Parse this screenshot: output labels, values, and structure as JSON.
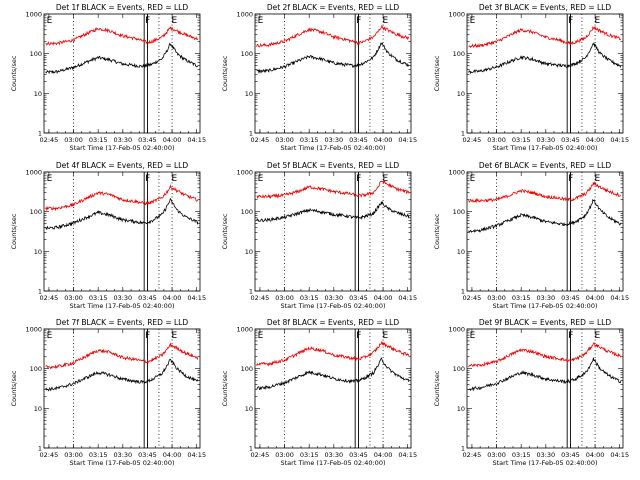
{
  "figure": {
    "x_ticks": [
      "02:45",
      "03:00",
      "03:15",
      "03:30",
      "03:45",
      "04:00",
      "04:15"
    ],
    "y_ticks": [
      "1000",
      "100",
      "10",
      "1"
    ],
    "xlabel": "Start Time (17-Feb-05 02:40:00)",
    "ylabel": "Counts/sec",
    "flags": [
      "E",
      "F",
      "E"
    ],
    "colors": {
      "events": "#000000",
      "lld": "#ee0000",
      "axes": "#000000",
      "background": "#ffffff"
    }
  },
  "chart_data": [
    {
      "type": "line",
      "title": "Det 1f BLACK = Events, RED = LLD",
      "xlabel": "Start Time (17-Feb-05 02:40:00)",
      "ylabel": "Counts/sec",
      "yscale": "log",
      "ylim": [
        1,
        1000
      ],
      "x_ticks": [
        "02:45",
        "03:00",
        "03:15",
        "03:30",
        "03:45",
        "04:00",
        "04:15"
      ],
      "markers": {
        "dotted": [
          "03:00",
          "03:52",
          "04:00"
        ],
        "solid": [
          "03:43",
          "03:45"
        ]
      },
      "series": [
        {
          "name": "Events",
          "color": "#000000",
          "x": [
            "02:43",
            "02:50",
            "03:00",
            "03:08",
            "03:15",
            "03:22",
            "03:30",
            "03:38",
            "03:42",
            "03:45",
            "03:48",
            "03:54",
            "03:57",
            "03:59",
            "04:03",
            "04:08",
            "04:15"
          ],
          "values": [
            34,
            35,
            45,
            62,
            80,
            70,
            55,
            50,
            48,
            50,
            55,
            75,
            120,
            180,
            100,
            70,
            50
          ]
        },
        {
          "name": "LLD",
          "color": "#ee0000",
          "x": [
            "02:43",
            "02:50",
            "03:00",
            "03:08",
            "03:15",
            "03:22",
            "03:30",
            "03:38",
            "03:42",
            "03:45",
            "03:48",
            "03:54",
            "03:57",
            "03:59",
            "04:03",
            "04:08",
            "04:15"
          ],
          "values": [
            180,
            182,
            220,
            320,
            430,
            380,
            280,
            240,
            210,
            190,
            205,
            260,
            360,
            450,
            380,
            300,
            240
          ]
        }
      ]
    },
    {
      "type": "line",
      "title": "Det 2f BLACK = Events, RED = LLD",
      "xlabel": "Start Time (17-Feb-05 02:40:00)",
      "ylabel": "Counts/sec",
      "yscale": "log",
      "ylim": [
        1,
        1000
      ],
      "x_ticks": [
        "02:45",
        "03:00",
        "03:15",
        "03:30",
        "03:45",
        "04:00",
        "04:15"
      ],
      "markers": {
        "dotted": [
          "03:00",
          "03:52",
          "04:00"
        ],
        "solid": [
          "03:43",
          "03:45"
        ]
      },
      "series": [
        {
          "name": "Events",
          "color": "#000000",
          "x": [
            "02:43",
            "02:50",
            "03:00",
            "03:08",
            "03:15",
            "03:22",
            "03:30",
            "03:38",
            "03:42",
            "03:45",
            "03:48",
            "03:54",
            "03:57",
            "03:59",
            "04:03",
            "04:08",
            "04:15"
          ],
          "values": [
            36,
            37,
            47,
            65,
            85,
            74,
            58,
            52,
            50,
            52,
            58,
            80,
            130,
            190,
            105,
            72,
            52
          ]
        },
        {
          "name": "LLD",
          "color": "#ee0000",
          "x": [
            "02:43",
            "02:50",
            "03:00",
            "03:08",
            "03:15",
            "03:22",
            "03:30",
            "03:38",
            "03:42",
            "03:45",
            "03:48",
            "03:54",
            "03:57",
            "03:59",
            "04:03",
            "04:08",
            "04:15"
          ],
          "values": [
            160,
            165,
            205,
            300,
            410,
            360,
            265,
            225,
            200,
            185,
            200,
            260,
            360,
            480,
            390,
            310,
            250
          ]
        }
      ]
    },
    {
      "type": "line",
      "title": "Det 3f BLACK = Events, RED = LLD",
      "xlabel": "Start Time (17-Feb-05 02:40:00)",
      "ylabel": "Counts/sec",
      "yscale": "log",
      "ylim": [
        1,
        1000
      ],
      "x_ticks": [
        "02:45",
        "03:00",
        "03:15",
        "03:30",
        "03:45",
        "04:00",
        "04:15"
      ],
      "markers": {
        "dotted": [
          "03:00",
          "03:52",
          "04:00"
        ],
        "solid": [
          "03:43",
          "03:45"
        ]
      },
      "series": [
        {
          "name": "Events",
          "color": "#000000",
          "x": [
            "02:43",
            "02:50",
            "03:00",
            "03:08",
            "03:15",
            "03:22",
            "03:30",
            "03:38",
            "03:42",
            "03:45",
            "03:48",
            "03:54",
            "03:57",
            "03:59",
            "04:03",
            "04:08",
            "04:15"
          ],
          "values": [
            35,
            36,
            46,
            63,
            82,
            72,
            56,
            51,
            49,
            51,
            56,
            78,
            125,
            185,
            102,
            70,
            50
          ]
        },
        {
          "name": "LLD",
          "color": "#ee0000",
          "x": [
            "02:43",
            "02:50",
            "03:00",
            "03:08",
            "03:15",
            "03:22",
            "03:30",
            "03:38",
            "03:42",
            "03:45",
            "03:48",
            "03:54",
            "03:57",
            "03:59",
            "04:03",
            "04:08",
            "04:15"
          ],
          "values": [
            155,
            160,
            200,
            290,
            400,
            350,
            260,
            220,
            195,
            180,
            195,
            250,
            350,
            460,
            380,
            300,
            240
          ]
        }
      ]
    },
    {
      "type": "line",
      "title": "Det 4f BLACK = Events, RED = LLD",
      "xlabel": "Start Time (17-Feb-05 02:40:00)",
      "ylabel": "Counts/sec",
      "yscale": "log",
      "ylim": [
        1,
        1000
      ],
      "x_ticks": [
        "02:45",
        "03:00",
        "03:15",
        "03:30",
        "03:45",
        "04:00",
        "04:15"
      ],
      "markers": {
        "dotted": [
          "03:00",
          "03:52",
          "04:00"
        ],
        "solid": [
          "03:43",
          "03:45"
        ]
      },
      "series": [
        {
          "name": "Events",
          "color": "#000000",
          "x": [
            "02:43",
            "02:50",
            "03:00",
            "03:08",
            "03:15",
            "03:22",
            "03:30",
            "03:38",
            "03:42",
            "03:45",
            "03:48",
            "03:54",
            "03:57",
            "03:59",
            "04:03",
            "04:08",
            "04:15"
          ],
          "values": [
            38,
            40,
            52,
            72,
            95,
            82,
            62,
            56,
            52,
            54,
            60,
            85,
            140,
            200,
            110,
            75,
            55
          ]
        },
        {
          "name": "LLD",
          "color": "#ee0000",
          "x": [
            "02:43",
            "02:50",
            "03:00",
            "03:08",
            "03:15",
            "03:22",
            "03:30",
            "03:38",
            "03:42",
            "03:45",
            "03:48",
            "03:54",
            "03:57",
            "03:59",
            "04:03",
            "04:08",
            "04:15"
          ],
          "values": [
            120,
            122,
            150,
            220,
            300,
            270,
            200,
            180,
            165,
            160,
            175,
            230,
            320,
            420,
            340,
            260,
            200
          ]
        }
      ]
    },
    {
      "type": "line",
      "title": "Det 5f BLACK = Events, RED = LLD",
      "xlabel": "Start Time (17-Feb-05 02:40:00)",
      "ylabel": "Counts/sec",
      "yscale": "log",
      "ylim": [
        1,
        1000
      ],
      "x_ticks": [
        "02:45",
        "03:00",
        "03:15",
        "03:30",
        "03:45",
        "04:00",
        "04:15"
      ],
      "markers": {
        "dotted": [
          "03:00",
          "03:52",
          "04:00"
        ],
        "solid": [
          "03:43",
          "03:45"
        ]
      },
      "series": [
        {
          "name": "Events",
          "color": "#000000",
          "x": [
            "02:43",
            "02:50",
            "03:00",
            "03:08",
            "03:15",
            "03:22",
            "03:30",
            "03:38",
            "03:42",
            "03:45",
            "03:48",
            "03:54",
            "03:57",
            "03:59",
            "04:03",
            "04:08",
            "04:15"
          ],
          "values": [
            60,
            62,
            72,
            90,
            110,
            100,
            85,
            78,
            72,
            70,
            74,
            90,
            130,
            170,
            120,
            95,
            78
          ]
        },
        {
          "name": "LLD",
          "color": "#ee0000",
          "x": [
            "02:43",
            "02:50",
            "03:00",
            "03:08",
            "03:15",
            "03:22",
            "03:30",
            "03:38",
            "03:42",
            "03:45",
            "03:48",
            "03:54",
            "03:57",
            "03:59",
            "04:03",
            "04:08",
            "04:15"
          ],
          "values": [
            240,
            240,
            260,
            320,
            420,
            380,
            320,
            290,
            270,
            255,
            260,
            300,
            420,
            600,
            480,
            380,
            310
          ]
        }
      ]
    },
    {
      "type": "line",
      "title": "Det 6f BLACK = Events, RED = LLD",
      "xlabel": "Start Time (17-Feb-05 02:40:00)",
      "ylabel": "Counts/sec",
      "yscale": "log",
      "ylim": [
        1,
        1000
      ],
      "x_ticks": [
        "02:45",
        "03:00",
        "03:15",
        "03:30",
        "03:45",
        "04:00",
        "04:15"
      ],
      "markers": {
        "dotted": [
          "03:00",
          "03:52",
          "04:00"
        ],
        "solid": [
          "03:43",
          "03:45"
        ]
      },
      "series": [
        {
          "name": "Events",
          "color": "#000000",
          "x": [
            "02:43",
            "02:50",
            "03:00",
            "03:08",
            "03:15",
            "03:22",
            "03:30",
            "03:38",
            "03:42",
            "03:45",
            "03:48",
            "03:54",
            "03:57",
            "03:59",
            "04:03",
            "04:08",
            "04:15"
          ],
          "values": [
            32,
            34,
            44,
            62,
            82,
            72,
            56,
            50,
            48,
            50,
            56,
            80,
            130,
            200,
            110,
            72,
            50
          ]
        },
        {
          "name": "LLD",
          "color": "#ee0000",
          "x": [
            "02:43",
            "02:50",
            "03:00",
            "03:08",
            "03:15",
            "03:22",
            "03:30",
            "03:38",
            "03:42",
            "03:45",
            "03:48",
            "03:54",
            "03:57",
            "03:59",
            "04:03",
            "04:08",
            "04:15"
          ],
          "values": [
            190,
            190,
            200,
            260,
            340,
            300,
            240,
            220,
            205,
            200,
            215,
            280,
            380,
            520,
            420,
            330,
            260
          ]
        }
      ]
    },
    {
      "type": "line",
      "title": "Det 7f BLACK = Events, RED = LLD",
      "xlabel": "Start Time (17-Feb-05 02:40:00)",
      "ylabel": "Counts/sec",
      "yscale": "log",
      "ylim": [
        1,
        1000
      ],
      "x_ticks": [
        "02:45",
        "03:00",
        "03:15",
        "03:30",
        "03:45",
        "04:00",
        "04:15"
      ],
      "markers": {
        "dotted": [
          "03:00",
          "03:52",
          "04:00"
        ],
        "solid": [
          "03:43",
          "03:45"
        ]
      },
      "series": [
        {
          "name": "Events",
          "color": "#000000",
          "x": [
            "02:43",
            "02:50",
            "03:00",
            "03:08",
            "03:15",
            "03:22",
            "03:30",
            "03:38",
            "03:42",
            "03:45",
            "03:48",
            "03:54",
            "03:57",
            "03:59",
            "04:03",
            "04:08",
            "04:15"
          ],
          "values": [
            30,
            32,
            42,
            60,
            80,
            70,
            54,
            48,
            46,
            48,
            54,
            76,
            120,
            170,
            100,
            68,
            48
          ]
        },
        {
          "name": "LLD",
          "color": "#ee0000",
          "x": [
            "02:43",
            "02:50",
            "03:00",
            "03:08",
            "03:15",
            "03:22",
            "03:30",
            "03:38",
            "03:42",
            "03:45",
            "03:48",
            "03:54",
            "03:57",
            "03:59",
            "04:03",
            "04:08",
            "04:15"
          ],
          "values": [
            110,
            112,
            140,
            210,
            290,
            260,
            190,
            170,
            155,
            150,
            165,
            220,
            310,
            400,
            330,
            250,
            190
          ]
        }
      ]
    },
    {
      "type": "line",
      "title": "Det 8f BLACK = Events, RED = LLD",
      "xlabel": "Start Time (17-Feb-05 02:40:00)",
      "ylabel": "Counts/sec",
      "yscale": "log",
      "ylim": [
        1,
        1000
      ],
      "x_ticks": [
        "02:45",
        "03:00",
        "03:15",
        "03:30",
        "03:45",
        "04:00",
        "04:15"
      ],
      "markers": {
        "dotted": [
          "03:00",
          "03:52",
          "04:00"
        ],
        "solid": [
          "03:43",
          "03:45"
        ]
      },
      "series": [
        {
          "name": "Events",
          "color": "#000000",
          "x": [
            "02:43",
            "02:50",
            "03:00",
            "03:08",
            "03:15",
            "03:22",
            "03:30",
            "03:38",
            "03:42",
            "03:45",
            "03:48",
            "03:54",
            "03:57",
            "03:59",
            "04:03",
            "04:08",
            "04:15"
          ],
          "values": [
            32,
            34,
            44,
            62,
            82,
            72,
            56,
            50,
            48,
            50,
            56,
            78,
            122,
            175,
            102,
            70,
            50
          ]
        },
        {
          "name": "LLD",
          "color": "#ee0000",
          "x": [
            "02:43",
            "02:50",
            "03:00",
            "03:08",
            "03:15",
            "03:22",
            "03:30",
            "03:38",
            "03:42",
            "03:45",
            "03:48",
            "03:54",
            "03:57",
            "03:59",
            "04:03",
            "04:08",
            "04:15"
          ],
          "values": [
            130,
            132,
            165,
            240,
            330,
            295,
            220,
            195,
            180,
            175,
            190,
            250,
            350,
            450,
            370,
            290,
            220
          ]
        }
      ]
    },
    {
      "type": "line",
      "title": "Det 9f BLACK = Events, RED = LLD",
      "xlabel": "Start Time (17-Feb-05 02:40:00)",
      "ylabel": "Counts/sec",
      "yscale": "log",
      "ylim": [
        1,
        1000
      ],
      "x_ticks": [
        "02:45",
        "03:00",
        "03:15",
        "03:30",
        "03:45",
        "04:00",
        "04:15"
      ],
      "markers": {
        "dotted": [
          "03:00",
          "03:52",
          "04:00"
        ],
        "solid": [
          "03:43",
          "03:45"
        ]
      },
      "series": [
        {
          "name": "Events",
          "color": "#000000",
          "x": [
            "02:43",
            "02:50",
            "03:00",
            "03:08",
            "03:15",
            "03:22",
            "03:30",
            "03:38",
            "03:42",
            "03:45",
            "03:48",
            "03:54",
            "03:57",
            "03:59",
            "04:03",
            "04:08",
            "04:15"
          ],
          "values": [
            31,
            33,
            43,
            60,
            80,
            70,
            55,
            49,
            47,
            49,
            55,
            77,
            120,
            180,
            100,
            68,
            48
          ]
        },
        {
          "name": "LLD",
          "color": "#ee0000",
          "x": [
            "02:43",
            "02:50",
            "03:00",
            "03:08",
            "03:15",
            "03:22",
            "03:30",
            "03:38",
            "03:42",
            "03:45",
            "03:48",
            "03:54",
            "03:57",
            "03:59",
            "04:03",
            "04:08",
            "04:15"
          ],
          "values": [
            120,
            122,
            150,
            220,
            300,
            270,
            200,
            180,
            165,
            160,
            175,
            235,
            330,
            430,
            350,
            270,
            210
          ]
        }
      ]
    }
  ]
}
